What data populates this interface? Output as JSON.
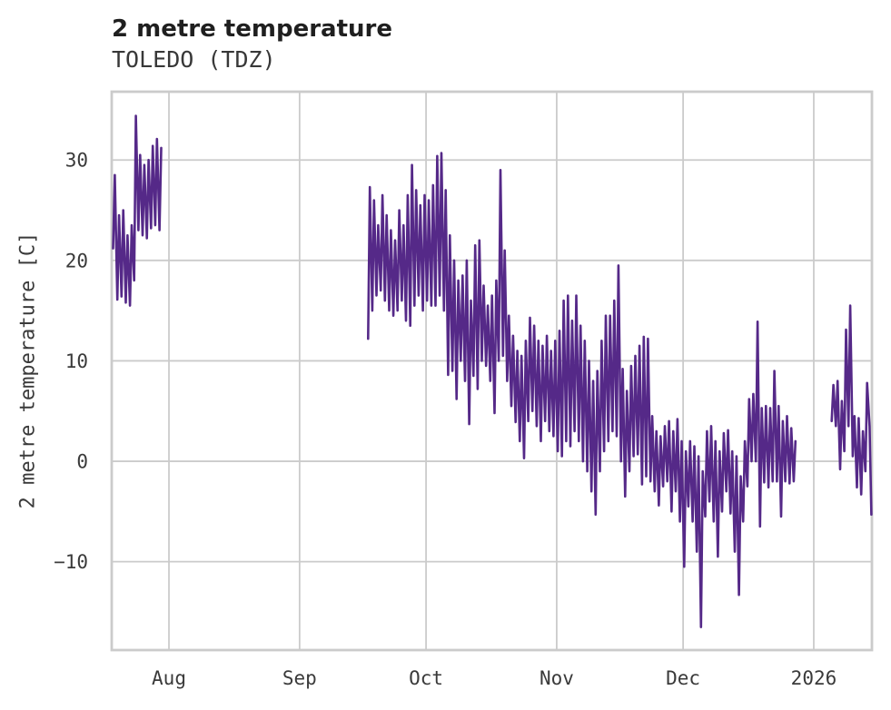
{
  "header": {
    "title": "2 metre temperature",
    "subtitle": "TOLEDO (TDZ)"
  },
  "chart_data": {
    "type": "line",
    "title": "2 metre temperature",
    "subtitle": "TOLEDO (TDZ)",
    "xlabel": "",
    "ylabel": "2 metre temperature [C]",
    "unit": "C",
    "grid": true,
    "legend_position": "none",
    "line_color": "#552988",
    "grid_color": "#cbcbcb",
    "tick_text_color": "#3a3a3a",
    "ylim": [
      -18.8,
      36.8
    ],
    "y_ticks": [
      {
        "value": 30,
        "label": "30"
      },
      {
        "value": 20,
        "label": "20"
      },
      {
        "value": 10,
        "label": "10"
      },
      {
        "value": 0,
        "label": "0"
      },
      {
        "value": -10,
        "label": "−10"
      }
    ],
    "x_axis": {
      "description": "time axis, day offsets measured from the Aug gridline",
      "xlim_days": [
        -13.58,
        166.8
      ],
      "ticks": [
        {
          "day": 0,
          "label": "Aug"
        },
        {
          "day": 31,
          "label": "Sep"
        },
        {
          "day": 61,
          "label": "Oct"
        },
        {
          "day": 92,
          "label": "Nov"
        },
        {
          "day": 122,
          "label": "Dec"
        },
        {
          "day": 153,
          "label": "2026"
        }
      ]
    },
    "sampling_note": "each day encoded as two samples [early-morning value, mid-afternoon value], degrees C; series has three separate segments with data gaps between them",
    "segments": [
      {
        "name": "late-July segment",
        "start_day": -13.5,
        "daily": [
          [
            21.2,
            28.5
          ],
          [
            16.1,
            24.5
          ],
          [
            16.4,
            25.0
          ],
          [
            15.8,
            22.5
          ],
          [
            15.5,
            23.5
          ],
          [
            18.0,
            34.4
          ],
          [
            23.0,
            30.5
          ],
          [
            22.5,
            29.5
          ],
          [
            22.2,
            30.0
          ],
          [
            23.2,
            31.4
          ],
          [
            23.5,
            32.1
          ],
          [
            23.0,
            31.2
          ]
        ]
      },
      {
        "name": "mid-September to late-December segment",
        "start_day": 47.0,
        "daily": [
          [
            12.2,
            27.3
          ],
          [
            15.0,
            26.0
          ],
          [
            16.5,
            23.5
          ],
          [
            17.0,
            26.5
          ],
          [
            16.0,
            24.5
          ],
          [
            15.0,
            23.0
          ],
          [
            14.5,
            22.0
          ],
          [
            15.0,
            25.0
          ],
          [
            16.0,
            23.5
          ],
          [
            14.0,
            26.5
          ],
          [
            13.5,
            29.5
          ],
          [
            15.5,
            27.0
          ],
          [
            16.5,
            25.5
          ],
          [
            15.0,
            26.5
          ],
          [
            16.0,
            26.0
          ],
          [
            15.5,
            27.5
          ],
          [
            15.5,
            30.4
          ],
          [
            16.5,
            30.7
          ],
          [
            15.0,
            27.0
          ],
          [
            8.6,
            22.5
          ],
          [
            9.0,
            20.0
          ],
          [
            6.2,
            18.0
          ],
          [
            10.0,
            18.5
          ],
          [
            8.0,
            20.0
          ],
          [
            3.7,
            16.0
          ],
          [
            8.5,
            21.5
          ],
          [
            7.2,
            22.0
          ],
          [
            10.0,
            17.5
          ],
          [
            9.5,
            15.5
          ],
          [
            8.0,
            16.5
          ],
          [
            4.8,
            18.0
          ],
          [
            10.0,
            29.0
          ],
          [
            10.5,
            21.0
          ],
          [
            8.0,
            14.5
          ],
          [
            5.5,
            12.5
          ],
          [
            3.9,
            11.0
          ],
          [
            2.0,
            10.5
          ],
          [
            0.3,
            12.0
          ],
          [
            4.0,
            14.3
          ],
          [
            5.0,
            13.5
          ],
          [
            3.5,
            12.0
          ],
          [
            2.0,
            11.5
          ],
          [
            4.0,
            12.5
          ],
          [
            3.0,
            11.0
          ],
          [
            2.5,
            12.0
          ],
          [
            1.0,
            13.0
          ],
          [
            0.5,
            16.0
          ],
          [
            2.0,
            16.5
          ],
          [
            1.5,
            14.0
          ],
          [
            3.0,
            16.5
          ],
          [
            2.0,
            13.5
          ],
          [
            0.0,
            12.0
          ],
          [
            -1.0,
            10.0
          ],
          [
            -3.0,
            8.0
          ],
          [
            -5.3,
            9.0
          ],
          [
            -1.0,
            12.0
          ],
          [
            1.0,
            14.5
          ],
          [
            2.0,
            14.5
          ],
          [
            3.0,
            16.0
          ],
          [
            2.5,
            19.5
          ],
          [
            0.0,
            9.2
          ],
          [
            -3.5,
            7.0
          ],
          [
            -1.0,
            9.5
          ],
          [
            0.5,
            10.5
          ],
          [
            0.7,
            11.5
          ],
          [
            -2.3,
            12.4
          ],
          [
            -1.5,
            12.2
          ],
          [
            -2.0,
            4.5
          ],
          [
            -3.0,
            3.0
          ],
          [
            -4.4,
            2.5
          ],
          [
            -2.5,
            3.5
          ],
          [
            -2.0,
            4.0
          ],
          [
            -5.0,
            3.0
          ],
          [
            -3.0,
            4.2
          ],
          [
            -6.0,
            2.0
          ],
          [
            -10.5,
            1.0
          ],
          [
            -4.5,
            2.0
          ],
          [
            -6.0,
            1.5
          ],
          [
            -9.0,
            0.5
          ],
          [
            -16.5,
            -1.0
          ],
          [
            -5.5,
            3.0
          ],
          [
            -4.0,
            3.5
          ],
          [
            -6.0,
            2.0
          ],
          [
            -9.5,
            1.0
          ],
          [
            -5.0,
            2.8
          ],
          [
            -3.0,
            3.1
          ],
          [
            -5.2,
            1.0
          ],
          [
            -9.0,
            0.5
          ],
          [
            -13.3,
            -1.5
          ],
          [
            -6.0,
            2.0
          ],
          [
            -2.5,
            6.2
          ],
          [
            0.0,
            6.7
          ],
          [
            0.0,
            13.9
          ],
          [
            -6.5,
            5.3
          ],
          [
            -2.1,
            5.5
          ],
          [
            -2.6,
            5.3
          ],
          [
            -2.0,
            9.0
          ],
          [
            -2.0,
            5.5
          ],
          [
            -5.5,
            4.0
          ],
          [
            -2.0,
            4.5
          ],
          [
            -2.2,
            3.3
          ],
          [
            -2.0,
            2.0
          ]
        ]
      },
      {
        "name": "early-January segment",
        "start_day": 157.0,
        "daily": [
          [
            4.0,
            7.6
          ],
          [
            3.5,
            8.0
          ],
          [
            -0.8,
            6.0
          ],
          [
            1.0,
            13.1
          ],
          [
            3.5,
            15.5
          ],
          [
            0.5,
            4.5
          ],
          [
            -2.6,
            4.3
          ],
          [
            -3.3,
            3.0
          ],
          [
            -1.0,
            7.8
          ],
          [
            3.5,
            -5.3
          ]
        ]
      }
    ]
  }
}
